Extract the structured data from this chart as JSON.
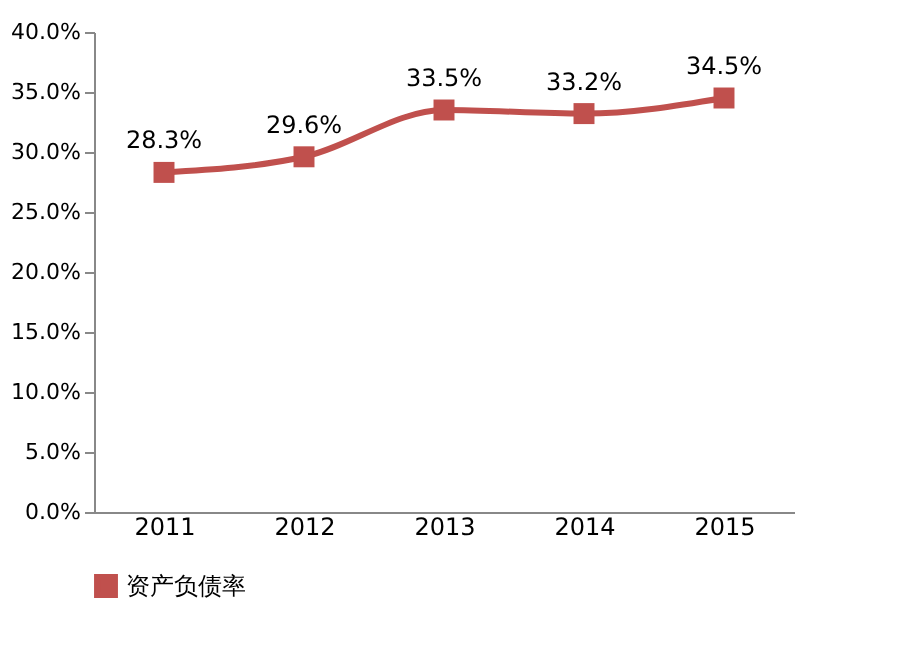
{
  "chart_data": {
    "type": "line",
    "categories": [
      "2011",
      "2012",
      "2013",
      "2014",
      "2015"
    ],
    "series": [
      {
        "name": "资产负债率",
        "color": "#c0504d",
        "values": [
          28.3,
          29.6,
          33.5,
          33.2,
          34.5
        ],
        "value_labels": [
          "28.3%",
          "29.6%",
          "33.5%",
          "33.2%",
          "34.5%"
        ]
      }
    ],
    "ylim": [
      0,
      40
    ],
    "yticks": [
      {
        "value": 0,
        "label": "0.0%"
      },
      {
        "value": 5,
        "label": "5.0%"
      },
      {
        "value": 10,
        "label": "10.0%"
      },
      {
        "value": 15,
        "label": "15.0%"
      },
      {
        "value": 20,
        "label": "20.0%"
      },
      {
        "value": 25,
        "label": "25.0%"
      },
      {
        "value": 30,
        "label": "30.0%"
      },
      {
        "value": 35,
        "label": "35.0%"
      },
      {
        "value": 40,
        "label": "40.0%"
      }
    ],
    "grid": false,
    "legend": "bottom",
    "marker": "square",
    "line_style": "solid"
  }
}
